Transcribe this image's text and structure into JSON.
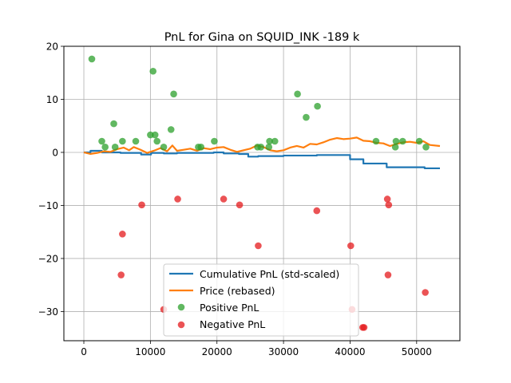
{
  "chart_data": {
    "type": "line",
    "title": "PnL for Gina on SQUID_INK -189 k",
    "xlabel": "",
    "ylabel": "",
    "xlim": [
      -3000,
      56500
    ],
    "ylim": [
      -35.5,
      20
    ],
    "xticks": [
      0,
      10000,
      20000,
      30000,
      40000,
      50000
    ],
    "yticks": [
      20,
      10,
      0,
      -10,
      -20,
      -30
    ],
    "xtick_labels": [
      "0",
      "10000",
      "20000",
      "30000",
      "40000",
      "50000"
    ],
    "ytick_labels": [
      "20",
      "10",
      "0",
      "−10",
      "−20",
      "−30"
    ],
    "grid": true,
    "legend_position": "lower-center",
    "series": [
      {
        "name": "Cumulative PnL (std-scaled)",
        "kind": "line",
        "color": "#1f77b4",
        "points": [
          [
            0,
            0
          ],
          [
            1000,
            0
          ],
          [
            1000,
            0.3
          ],
          [
            2700,
            0.3
          ],
          [
            2700,
            0
          ],
          [
            5500,
            0
          ],
          [
            5500,
            -0.1
          ],
          [
            8600,
            -0.1
          ],
          [
            8600,
            -0.4
          ],
          [
            10100,
            -0.4
          ],
          [
            10100,
            -0.1
          ],
          [
            12000,
            -0.1
          ],
          [
            12000,
            -0.2
          ],
          [
            14000,
            -0.2
          ],
          [
            14000,
            -0.1
          ],
          [
            19500,
            -0.1
          ],
          [
            19500,
            0
          ],
          [
            21000,
            0
          ],
          [
            21000,
            -0.2
          ],
          [
            23300,
            -0.2
          ],
          [
            23300,
            -0.3
          ],
          [
            24700,
            -0.3
          ],
          [
            24700,
            -0.8
          ],
          [
            26200,
            -0.8
          ],
          [
            26200,
            -0.7
          ],
          [
            30000,
            -0.7
          ],
          [
            30000,
            -0.6
          ],
          [
            35000,
            -0.6
          ],
          [
            35000,
            -0.5
          ],
          [
            40000,
            -0.5
          ],
          [
            40000,
            -1.3
          ],
          [
            42000,
            -1.3
          ],
          [
            42000,
            -2.1
          ],
          [
            45500,
            -2.1
          ],
          [
            45500,
            -2.8
          ],
          [
            51200,
            -2.8
          ],
          [
            51200,
            -3.0
          ],
          [
            53500,
            -3.0
          ]
        ]
      },
      {
        "name": "Price (rebased)",
        "kind": "line",
        "color": "#ff7f0e",
        "points": [
          [
            0,
            0
          ],
          [
            1000,
            -0.3
          ],
          [
            2000,
            -0.1
          ],
          [
            3000,
            0.2
          ],
          [
            4000,
            0.1
          ],
          [
            5000,
            0.6
          ],
          [
            6000,
            0.9
          ],
          [
            6800,
            0.4
          ],
          [
            7500,
            1.0
          ],
          [
            8500,
            0.5
          ],
          [
            9500,
            -0.1
          ],
          [
            10500,
            0.3
          ],
          [
            11500,
            0.8
          ],
          [
            12500,
            0.2
          ],
          [
            13300,
            1.3
          ],
          [
            14000,
            0.3
          ],
          [
            15000,
            0.5
          ],
          [
            16000,
            0.7
          ],
          [
            17000,
            0.3
          ],
          [
            18000,
            0.8
          ],
          [
            19000,
            0.6
          ],
          [
            20000,
            0.9
          ],
          [
            21000,
            1.0
          ],
          [
            22000,
            0.5
          ],
          [
            23000,
            0.1
          ],
          [
            24000,
            0.4
          ],
          [
            25000,
            0.7
          ],
          [
            26000,
            1.3
          ],
          [
            27000,
            1.0
          ],
          [
            28000,
            0.4
          ],
          [
            29000,
            0.2
          ],
          [
            30000,
            0.4
          ],
          [
            31000,
            0.9
          ],
          [
            32000,
            1.2
          ],
          [
            33000,
            0.9
          ],
          [
            34000,
            1.6
          ],
          [
            35000,
            1.5
          ],
          [
            36000,
            1.9
          ],
          [
            37000,
            2.4
          ],
          [
            38000,
            2.7
          ],
          [
            39000,
            2.5
          ],
          [
            40000,
            2.6
          ],
          [
            41000,
            2.8
          ],
          [
            42000,
            2.2
          ],
          [
            43000,
            2.1
          ],
          [
            44000,
            1.8
          ],
          [
            45000,
            1.7
          ],
          [
            46000,
            1.2
          ],
          [
            47000,
            1.6
          ],
          [
            48000,
            1.9
          ],
          [
            49000,
            2.0
          ],
          [
            50000,
            1.8
          ],
          [
            51000,
            2.1
          ],
          [
            52000,
            1.4
          ],
          [
            53500,
            1.2
          ]
        ]
      },
      {
        "name": "Positive PnL",
        "kind": "scatter",
        "color": "#2ca02c",
        "points": [
          [
            1200,
            17.6
          ],
          [
            2700,
            2.1
          ],
          [
            3200,
            1.0
          ],
          [
            4500,
            5.4
          ],
          [
            4700,
            1.0
          ],
          [
            5800,
            2.1
          ],
          [
            7800,
            2.1
          ],
          [
            10000,
            3.3
          ],
          [
            10400,
            15.3
          ],
          [
            10700,
            3.3
          ],
          [
            11000,
            2.1
          ],
          [
            12000,
            1.0
          ],
          [
            13100,
            4.3
          ],
          [
            13500,
            11.0
          ],
          [
            17200,
            1.0
          ],
          [
            17600,
            1.0
          ],
          [
            19600,
            2.1
          ],
          [
            26100,
            1.0
          ],
          [
            26600,
            1.0
          ],
          [
            27800,
            1.0
          ],
          [
            27900,
            2.1
          ],
          [
            28700,
            2.1
          ],
          [
            32100,
            11.0
          ],
          [
            33400,
            6.6
          ],
          [
            35100,
            8.7
          ],
          [
            43900,
            2.1
          ],
          [
            46800,
            1.0
          ],
          [
            46900,
            2.1
          ],
          [
            47900,
            2.1
          ],
          [
            50400,
            2.1
          ],
          [
            51400,
            1.0
          ]
        ]
      },
      {
        "name": "Negative PnL",
        "kind": "scatter",
        "color": "#e41a1c",
        "points": [
          [
            5600,
            -23.1
          ],
          [
            5800,
            -15.4
          ],
          [
            8700,
            -9.9
          ],
          [
            12000,
            -29.6
          ],
          [
            14100,
            -8.8
          ],
          [
            21000,
            -8.8
          ],
          [
            23400,
            -9.9
          ],
          [
            26200,
            -17.6
          ],
          [
            35000,
            -11.0
          ],
          [
            40100,
            -17.6
          ],
          [
            40300,
            -29.6
          ],
          [
            41900,
            -33.0
          ],
          [
            42100,
            -33.0
          ],
          [
            45600,
            -8.8
          ],
          [
            45800,
            -9.9
          ],
          [
            45700,
            -23.1
          ],
          [
            51300,
            -26.4
          ]
        ]
      }
    ]
  }
}
